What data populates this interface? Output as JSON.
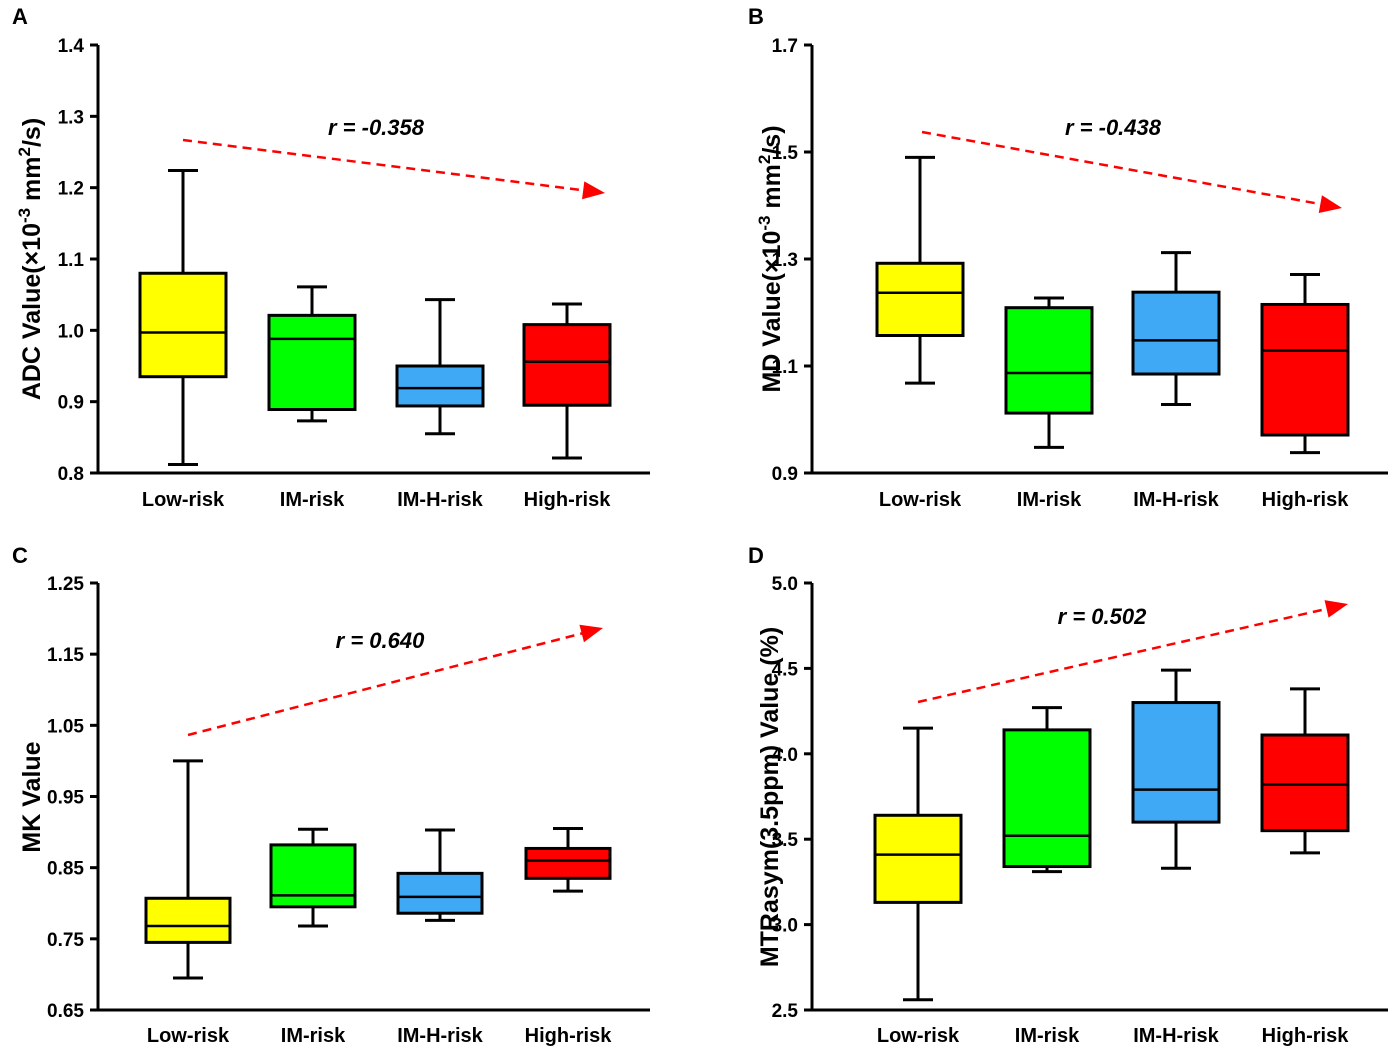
{
  "chart_data": [
    {
      "type": "boxplot",
      "panel_label": "A",
      "ylabel_main": "ADC Value(×10",
      "ylabel_exp": "-3",
      "ylabel_unit": " mm",
      "ylabel_exp2": "2",
      "ylabel_tail": "/s)",
      "ylim": [
        0.8,
        1.4
      ],
      "yticks": [
        "0.8",
        "0.9",
        "1.0",
        "1.1",
        "1.2",
        "1.3",
        "1.4"
      ],
      "categories": [
        "Low-risk",
        "IM-risk",
        "IM-H-risk",
        "High-risk"
      ],
      "boxes": [
        {
          "min": 0.812,
          "q1": 0.935,
          "median": 0.997,
          "q3": 1.08,
          "max": 1.224,
          "color": "#ffff00"
        },
        {
          "min": 0.873,
          "q1": 0.889,
          "median": 0.988,
          "q3": 1.021,
          "max": 1.061,
          "color": "#00ff00"
        },
        {
          "min": 0.855,
          "q1": 0.894,
          "median": 0.919,
          "q3": 0.95,
          "max": 1.043,
          "color": "#3fa9f5"
        },
        {
          "min": 0.821,
          "q1": 0.895,
          "median": 0.956,
          "q3": 1.008,
          "max": 1.037,
          "color": "#ff0000"
        }
      ],
      "annotation": "r = -0.358",
      "trend": "decreasing"
    },
    {
      "type": "boxplot",
      "panel_label": "B",
      "ylabel_main": "MD Value(×10",
      "ylabel_exp": "-3",
      "ylabel_unit": " mm",
      "ylabel_exp2": "2",
      "ylabel_tail": "/s)",
      "ylim": [
        0.9,
        1.7
      ],
      "yticks": [
        "0.9",
        "1.1",
        "1.3",
        "1.5",
        "1.7"
      ],
      "categories": [
        "Low-risk",
        "IM-risk",
        "IM-H-risk",
        "High-risk"
      ],
      "boxes": [
        {
          "min": 1.068,
          "q1": 1.157,
          "median": 1.237,
          "q3": 1.292,
          "max": 1.49,
          "color": "#ffff00"
        },
        {
          "min": 0.948,
          "q1": 1.012,
          "median": 1.087,
          "q3": 1.209,
          "max": 1.227,
          "color": "#00ff00"
        },
        {
          "min": 1.028,
          "q1": 1.085,
          "median": 1.148,
          "q3": 1.238,
          "max": 1.312,
          "color": "#3fa9f5"
        },
        {
          "min": 0.938,
          "q1": 0.971,
          "median": 1.129,
          "q3": 1.215,
          "max": 1.271,
          "color": "#ff0000"
        }
      ],
      "annotation": "r = -0.438",
      "trend": "decreasing"
    },
    {
      "type": "boxplot",
      "panel_label": "C",
      "ylabel_main": "MK Value",
      "ylabel_exp": "",
      "ylabel_unit": "",
      "ylabel_exp2": "",
      "ylabel_tail": "",
      "ylim": [
        0.65,
        1.25
      ],
      "yticks": [
        "0.65",
        "0.75",
        "0.85",
        "0.95",
        "1.05",
        "1.15",
        "1.25"
      ],
      "categories": [
        "Low-risk",
        "IM-risk",
        "IM-H-risk",
        "High-risk"
      ],
      "boxes": [
        {
          "min": 0.695,
          "q1": 0.745,
          "median": 0.768,
          "q3": 0.807,
          "max": 1.0,
          "color": "#ffff00"
        },
        {
          "min": 0.768,
          "q1": 0.795,
          "median": 0.811,
          "q3": 0.882,
          "max": 0.904,
          "color": "#00ff00"
        },
        {
          "min": 0.776,
          "q1": 0.786,
          "median": 0.809,
          "q3": 0.842,
          "max": 0.903,
          "color": "#3fa9f5"
        },
        {
          "min": 0.817,
          "q1": 0.835,
          "median": 0.86,
          "q3": 0.877,
          "max": 0.905,
          "color": "#ff0000"
        }
      ],
      "annotation": "r = 0.640",
      "trend": "increasing"
    },
    {
      "type": "boxplot",
      "panel_label": "D",
      "ylabel_main": "MTRasym(3.5ppm) Value (%)",
      "ylabel_exp": "",
      "ylabel_unit": "",
      "ylabel_exp2": "",
      "ylabel_tail": "",
      "ylim": [
        2.5,
        5.0
      ],
      "yticks": [
        "2.5",
        "3.0",
        "3.5",
        "4.0",
        "4.5",
        "5.0"
      ],
      "categories": [
        "Low-risk",
        "IM-risk",
        "IM-H-risk",
        "High-risk"
      ],
      "boxes": [
        {
          "min": 2.56,
          "q1": 3.13,
          "median": 3.41,
          "q3": 3.64,
          "max": 4.15,
          "color": "#ffff00"
        },
        {
          "min": 3.31,
          "q1": 3.34,
          "median": 3.52,
          "q3": 4.14,
          "max": 4.27,
          "color": "#00ff00"
        },
        {
          "min": 3.33,
          "q1": 3.6,
          "median": 3.79,
          "q3": 4.3,
          "max": 4.49,
          "color": "#3fa9f5"
        },
        {
          "min": 3.42,
          "q1": 3.55,
          "median": 3.82,
          "q3": 4.11,
          "max": 4.38,
          "color": "#ff0000"
        }
      ],
      "annotation": "r = 0.502",
      "trend": "increasing"
    }
  ],
  "colors": {
    "arrow": "#ff0000",
    "axis": "#000000",
    "stroke": "#000000"
  }
}
